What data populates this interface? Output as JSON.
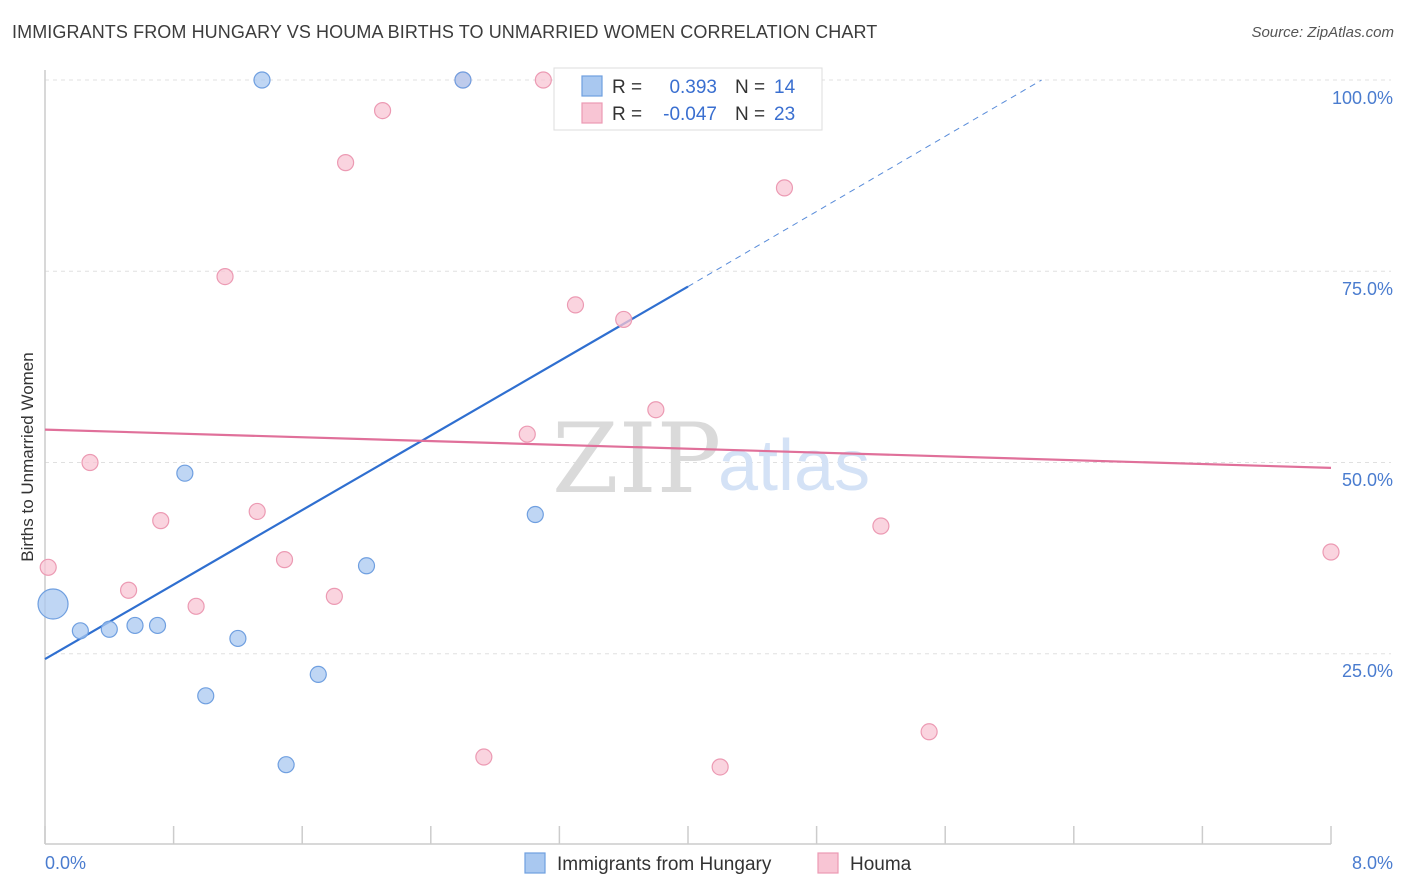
{
  "chart_data": {
    "type": "scatter",
    "title": "IMMIGRANTS FROM HUNGARY VS HOUMA BIRTHS TO UNMARRIED WOMEN CORRELATION CHART",
    "source": "Source: ZipAtlas.com",
    "xlabel": "",
    "ylabel": "Births to Unmarried Women",
    "xlim": [
      0,
      8
    ],
    "ylim": [
      0,
      100
    ],
    "x_tick_labels": [
      "0.0%",
      "8.0%"
    ],
    "y_tick_labels": [
      "100.0%",
      "75.0%",
      "50.0%",
      "25.0%"
    ],
    "y_tick_values": [
      100,
      75,
      50,
      25
    ],
    "watermark": {
      "part1": "ZIP",
      "part2": "atlas"
    },
    "legend": {
      "rows": [
        {
          "r_label": "R =",
          "r_value": "0.393",
          "n_label": "N =",
          "n_value": "14"
        },
        {
          "r_label": "R =",
          "r_value": "-0.047",
          "n_label": "N =",
          "n_value": "23"
        }
      ]
    },
    "series": [
      {
        "name": "Immigrants from Hungary",
        "color": "#a9c8f0",
        "stroke": "#6f9fe0",
        "trend_color": "#2f6fd0",
        "trend": {
          "x0": 0,
          "y0": 24.3,
          "x1": 4.0,
          "y1": 73.0,
          "dash_x1": 6.2,
          "dash_y1": 100
        },
        "points": [
          {
            "x": 0.05,
            "y": 31.5,
            "size": "large"
          },
          {
            "x": 0.22,
            "y": 28.0
          },
          {
            "x": 0.4,
            "y": 28.2
          },
          {
            "x": 0.56,
            "y": 28.7
          },
          {
            "x": 0.7,
            "y": 28.7
          },
          {
            "x": 0.87,
            "y": 48.6
          },
          {
            "x": 1.0,
            "y": 19.5
          },
          {
            "x": 1.2,
            "y": 27.0
          },
          {
            "x": 1.35,
            "y": 100.0
          },
          {
            "x": 1.5,
            "y": 10.5
          },
          {
            "x": 1.7,
            "y": 22.3
          },
          {
            "x": 2.0,
            "y": 36.5
          },
          {
            "x": 2.6,
            "y": 100.0
          },
          {
            "x": 3.05,
            "y": 43.2
          }
        ]
      },
      {
        "name": "Houma",
        "color": "#f8c5d4",
        "stroke": "#ec9ab3",
        "trend_color": "#e0709a",
        "trend": {
          "x0": 0,
          "y0": 54.3,
          "x1": 8.0,
          "y1": 49.3
        },
        "points": [
          {
            "x": 0.02,
            "y": 36.3
          },
          {
            "x": 0.28,
            "y": 50.0
          },
          {
            "x": 0.52,
            "y": 33.3
          },
          {
            "x": 0.72,
            "y": 42.4
          },
          {
            "x": 0.94,
            "y": 31.2
          },
          {
            "x": 1.12,
            "y": 74.3
          },
          {
            "x": 1.32,
            "y": 43.6
          },
          {
            "x": 1.49,
            "y": 37.3
          },
          {
            "x": 1.8,
            "y": 32.5
          },
          {
            "x": 1.87,
            "y": 89.2
          },
          {
            "x": 2.1,
            "y": 96.0
          },
          {
            "x": 2.6,
            "y": 100.0
          },
          {
            "x": 2.73,
            "y": 11.5
          },
          {
            "x": 3.0,
            "y": 53.7
          },
          {
            "x": 3.1,
            "y": 100.0
          },
          {
            "x": 3.3,
            "y": 70.6
          },
          {
            "x": 3.6,
            "y": 68.7
          },
          {
            "x": 3.8,
            "y": 56.9
          },
          {
            "x": 4.2,
            "y": 10.2
          },
          {
            "x": 4.6,
            "y": 85.9
          },
          {
            "x": 5.2,
            "y": 41.7
          },
          {
            "x": 5.5,
            "y": 14.8
          },
          {
            "x": 8.0,
            "y": 38.3
          }
        ]
      }
    ]
  }
}
